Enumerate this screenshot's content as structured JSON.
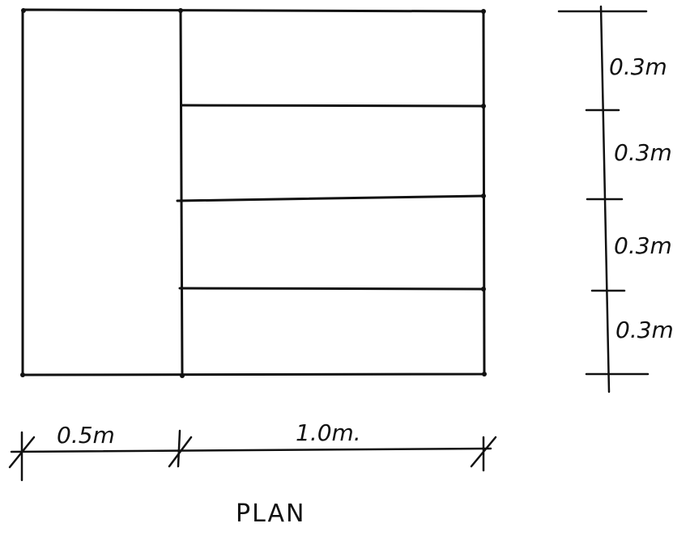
{
  "plan": {
    "title": "PLAN",
    "left_width": "0.5m",
    "right_width": "1.0m.",
    "vertical_dims": [
      "0.3m",
      "0.3m",
      "0.3m",
      "0.3m"
    ]
  }
}
